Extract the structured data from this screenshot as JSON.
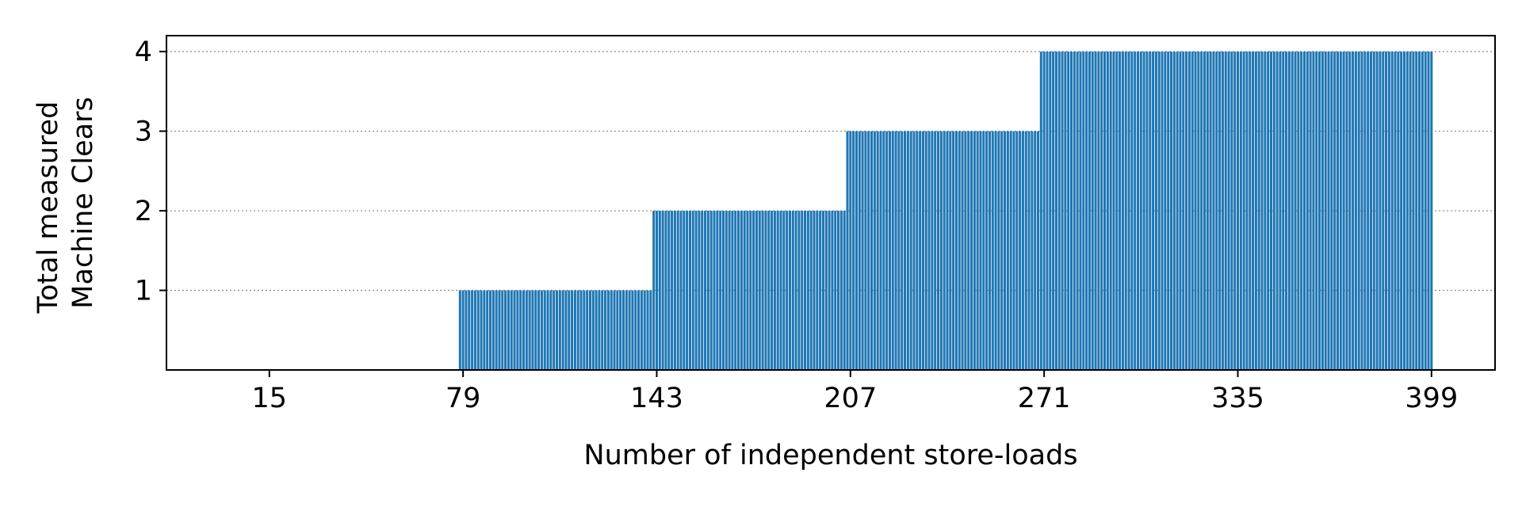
{
  "chart_data": {
    "type": "bar",
    "xlabel": "Number of independent store-loads",
    "ylabel_lines": [
      "Total measured",
      "Machine Clears"
    ],
    "x_ticks": [
      "15",
      "79",
      "143",
      "207",
      "271",
      "335",
      "399"
    ],
    "y_ticks": [
      "1",
      "2",
      "3",
      "4"
    ],
    "xlim": [
      -19,
      420
    ],
    "ylim": [
      0,
      4.2
    ],
    "x_start": 0,
    "x_end": 399,
    "bar_width": 0.8,
    "grid": "y-dotted",
    "bar_color": "#1f77b4",
    "segments": [
      {
        "x_from": 0,
        "x_to": 77,
        "value": 0
      },
      {
        "x_from": 78,
        "x_to": 141,
        "value": 1
      },
      {
        "x_from": 142,
        "x_to": 205,
        "value": 2
      },
      {
        "x_from": 206,
        "x_to": 269,
        "value": 3
      },
      {
        "x_from": 270,
        "x_to": 399,
        "value": 4
      }
    ]
  }
}
